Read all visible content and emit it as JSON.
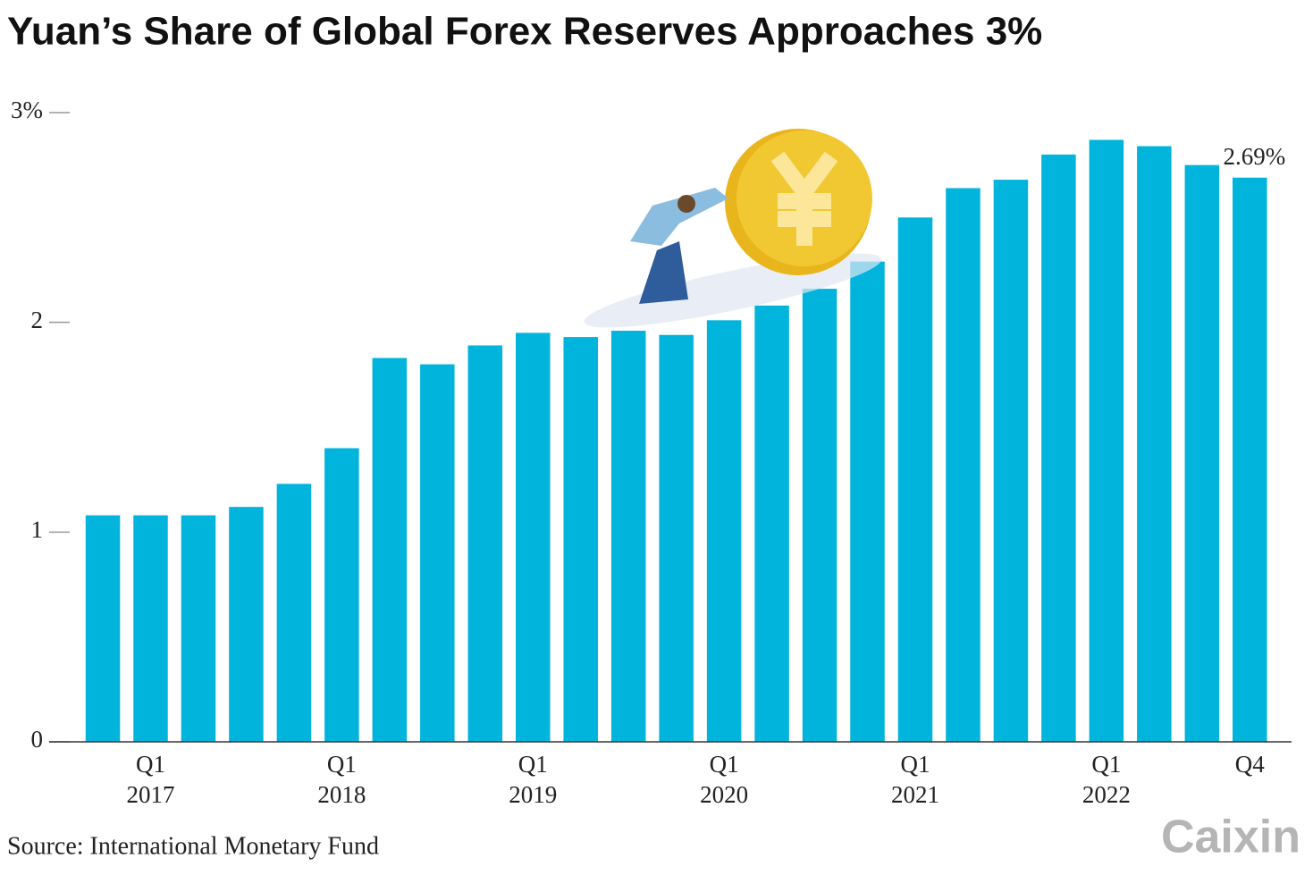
{
  "chart_data": {
    "type": "bar",
    "title": "Yuan’s Share of Global Forex Reserves Approaches 3%",
    "source": "Source: International Monetary Fund",
    "logo": "Caixin",
    "categories": [
      null,
      "Q1 2017",
      null,
      null,
      null,
      "Q1 2018",
      null,
      null,
      null,
      "Q1 2019",
      null,
      null,
      null,
      "Q1 2020",
      null,
      null,
      null,
      "Q1 2021",
      null,
      null,
      null,
      "Q1 2022",
      null,
      null,
      "Q4"
    ],
    "values": [
      1.08,
      1.08,
      1.08,
      1.12,
      1.23,
      1.4,
      1.83,
      1.8,
      1.89,
      1.95,
      1.93,
      1.96,
      1.94,
      2.01,
      2.08,
      2.16,
      2.29,
      2.5,
      2.64,
      2.68,
      2.8,
      2.87,
      2.84,
      2.75,
      2.69
    ],
    "value_labels": [
      null,
      null,
      null,
      null,
      null,
      null,
      null,
      null,
      null,
      null,
      null,
      null,
      null,
      null,
      null,
      null,
      null,
      null,
      null,
      null,
      null,
      null,
      null,
      null,
      "2.69%"
    ],
    "color": "#00b4dc",
    "ylim": [
      0,
      3
    ],
    "yticks": [
      0,
      1,
      2,
      {
        "value": 3,
        "label": "3%"
      }
    ]
  }
}
